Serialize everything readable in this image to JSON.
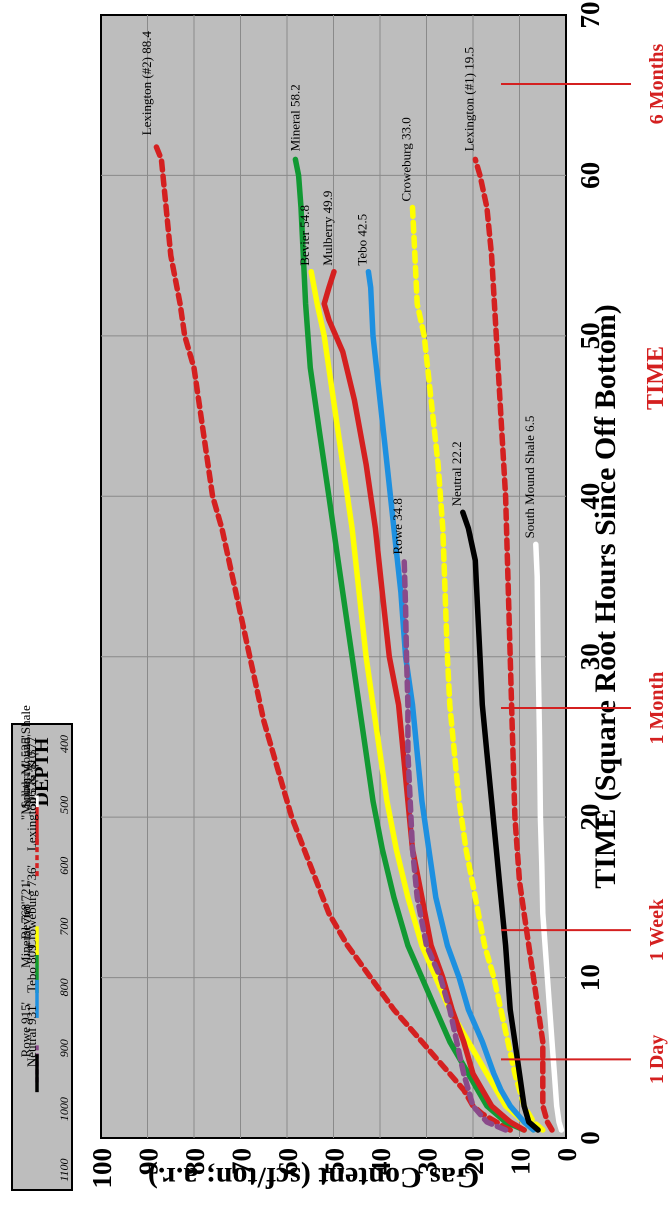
{
  "chart_data": {
    "type": "line",
    "xlabel": "TIME (Square Root Hours Since Off Bottom)",
    "ylabel": "Gas Content (scf/ton; a.r.)",
    "time_title": "TIME",
    "xlim": [
      0,
      70
    ],
    "ylim": [
      0,
      100
    ],
    "x_ticks": [
      "0",
      "10",
      "20",
      "30",
      "40",
      "50",
      "60",
      "70"
    ],
    "y_ticks": [
      "0",
      "10",
      "20",
      "30",
      "40",
      "50",
      "60",
      "70",
      "80",
      "90",
      "100"
    ],
    "grid": true,
    "time_markers": [
      {
        "label": "1 Day",
        "x": 4.9
      },
      {
        "label": "1 Week",
        "x": 12.96
      },
      {
        "label": "1 Month",
        "x": 26.8
      },
      {
        "label": "6 Months",
        "x": 65.7
      }
    ],
    "series": [
      {
        "name": "Lexington (#2) 88.4",
        "color": "#d42020",
        "dash": true,
        "x": [
          0.5,
          1,
          1.5,
          2,
          3,
          4,
          5,
          6,
          8,
          10,
          12,
          14,
          17,
          20,
          23,
          26,
          30,
          34,
          38,
          40,
          44,
          48,
          50,
          52,
          55,
          58,
          61,
          62
        ],
        "y": [
          12,
          15,
          18,
          20,
          22,
          25,
          28,
          31,
          37,
          42,
          47,
          51,
          55,
          59,
          62,
          65,
          68,
          71,
          74,
          76,
          78,
          80,
          82,
          83,
          85,
          86,
          87,
          88.4
        ]
      },
      {
        "name": "Mineral 58.2",
        "color": "#119933",
        "dash": false,
        "x": [
          0.5,
          1,
          2,
          3,
          4,
          6,
          8,
          10,
          12,
          15,
          18,
          21,
          24,
          27,
          30,
          33,
          36,
          40,
          44,
          48,
          52,
          55,
          58,
          60,
          61
        ],
        "y": [
          9,
          13,
          17,
          19,
          21,
          25,
          28,
          31,
          34,
          37,
          39.5,
          41.5,
          43,
          44.5,
          46,
          47.5,
          49,
          51,
          53,
          55,
          56,
          56.5,
          57,
          57.5,
          58.2
        ]
      },
      {
        "name": "Bevier 54.8",
        "color": "#ffff00",
        "dash": false,
        "x": [
          0.5,
          1,
          2,
          3,
          4,
          6,
          8,
          10,
          12,
          15,
          18,
          21,
          24,
          27,
          30,
          34,
          38,
          42,
          46,
          50,
          52,
          54
        ],
        "y": [
          7,
          9,
          13,
          15,
          17,
          21,
          25,
          28,
          31,
          34,
          36.5,
          38.5,
          40,
          41.5,
          43,
          44.5,
          46,
          48,
          50,
          52,
          53.5,
          54.8
        ]
      },
      {
        "name": "Mulberry 49.9",
        "color": "#d42020",
        "dash": false,
        "x": [
          0.5,
          1,
          2,
          3,
          4,
          6,
          8,
          10,
          12,
          15,
          18,
          21,
          24,
          27,
          30,
          34,
          38,
          42,
          46,
          49,
          51,
          52,
          53,
          54
        ],
        "y": [
          9,
          12,
          16,
          18,
          20,
          22,
          24.5,
          26.5,
          29,
          31,
          33,
          34,
          35,
          36,
          38,
          39.5,
          41,
          43,
          45.5,
          48,
          51,
          52,
          51,
          49.9
        ]
      },
      {
        "name": "Tebo 42.5",
        "color": "#1e90e0",
        "dash": false,
        "x": [
          0.5,
          1,
          2,
          3,
          4,
          6,
          8,
          10,
          12,
          15,
          18,
          21,
          24,
          27,
          30,
          34,
          38,
          42,
          46,
          50,
          53,
          54
        ],
        "y": [
          7,
          9,
          12,
          14,
          15.5,
          18,
          21,
          23,
          25.5,
          28,
          29.5,
          31,
          32,
          33,
          34.5,
          35.5,
          37,
          38.5,
          40,
          41.5,
          42,
          42.5
        ]
      },
      {
        "name": "Rowe 34.8",
        "color": "#8a4a8a",
        "dash": true,
        "x": [
          0.5,
          1,
          2,
          3,
          4,
          6,
          8,
          10,
          12,
          15,
          18,
          21,
          24,
          27,
          30,
          33,
          36
        ],
        "y": [
          13,
          17,
          20,
          21,
          22,
          23.5,
          25,
          27,
          30,
          32,
          33,
          33.5,
          34,
          34,
          34.3,
          34.5,
          34.8
        ]
      },
      {
        "name": "Croweburg 33.0",
        "color": "#ffff00",
        "dash": true,
        "x": [
          0.5,
          1,
          2,
          3,
          4,
          6,
          8,
          10,
          12,
          15,
          18,
          21,
          24,
          27,
          30,
          34,
          38,
          42,
          46,
          50,
          52,
          55,
          58
        ],
        "y": [
          5,
          7,
          9,
          10,
          11,
          12.5,
          14,
          15.5,
          17.5,
          19.5,
          21.5,
          23,
          24,
          25,
          25.5,
          26,
          26.5,
          27.5,
          29,
          30.5,
          32,
          32.5,
          33
        ]
      },
      {
        "name": "Neutral 22.2",
        "color": "#000000",
        "dash": false,
        "x": [
          0.5,
          1,
          2,
          3,
          4,
          6,
          8,
          10,
          12,
          15,
          18,
          21,
          24,
          27,
          30,
          33,
          36,
          38,
          39
        ],
        "y": [
          6,
          8,
          9,
          9.5,
          10,
          11,
          12,
          12.5,
          13,
          14,
          15,
          16,
          17,
          18,
          18.5,
          19,
          19.5,
          21,
          22.2
        ]
      },
      {
        "name": "Lexington (#1) 19.5",
        "color": "#d42020",
        "dash": true,
        "x": [
          0.5,
          1,
          2,
          4,
          6,
          8,
          10,
          12,
          14,
          16,
          20,
          25,
          30,
          35,
          40,
          45,
          50,
          55,
          58,
          60,
          61
        ],
        "y": [
          3,
          4,
          5,
          5,
          5,
          6,
          7,
          8,
          9,
          10,
          11,
          11.5,
          12,
          12.5,
          13,
          14,
          15,
          16,
          17,
          18.5,
          19.5
        ]
      },
      {
        "name": "South Mound Shale 6.5",
        "color": "#ffffff",
        "dash": false,
        "x": [
          0.5,
          1,
          2,
          4,
          6,
          8,
          10,
          12,
          14,
          17,
          20,
          25,
          30,
          35,
          37
        ],
        "y": [
          1,
          1.5,
          2,
          2.5,
          3,
          3.5,
          4,
          4.5,
          5,
          5.2,
          5.5,
          5.7,
          6,
          6.2,
          6.5
        ]
      }
    ]
  },
  "legend": {
    "title": "DEPTH",
    "items": [
      {
        "text": "South Mound Shale",
        "depth": 506,
        "color": "#ffffff",
        "dash": false
      },
      {
        "text": "506' & 510'",
        "depth": 508,
        "color": null,
        "dash": false
      },
      {
        "text": "\"Mulberry\" 525'",
        "depth": 525,
        "color": "#d42020",
        "dash": false
      },
      {
        "text": "Lexington 576' & 577'",
        "depth": 576,
        "color": "#d42020",
        "dash": true
      },
      {
        "text": "Bevier 721'",
        "depth": 721,
        "color": "#ffff00",
        "dash": false
      },
      {
        "text": "Croweburg 736'",
        "depth": 736,
        "color": "#ffff00",
        "dash": true
      },
      {
        "text": "Mineral 768'",
        "depth": 768,
        "color": "#119933",
        "dash": false
      },
      {
        "text": "Tebo 809'",
        "depth": 809,
        "color": "#1e90e0",
        "dash": false
      },
      {
        "text": "Rowe 915'",
        "depth": 915,
        "color": "#8a4a8a",
        "dash": true
      },
      {
        "text": "Neutral 931'",
        "depth": 931,
        "color": "#000000",
        "dash": false
      }
    ],
    "depth_ticks": [
      "400",
      "500",
      "600",
      "700",
      "800",
      "900",
      "1000",
      "1100"
    ]
  }
}
